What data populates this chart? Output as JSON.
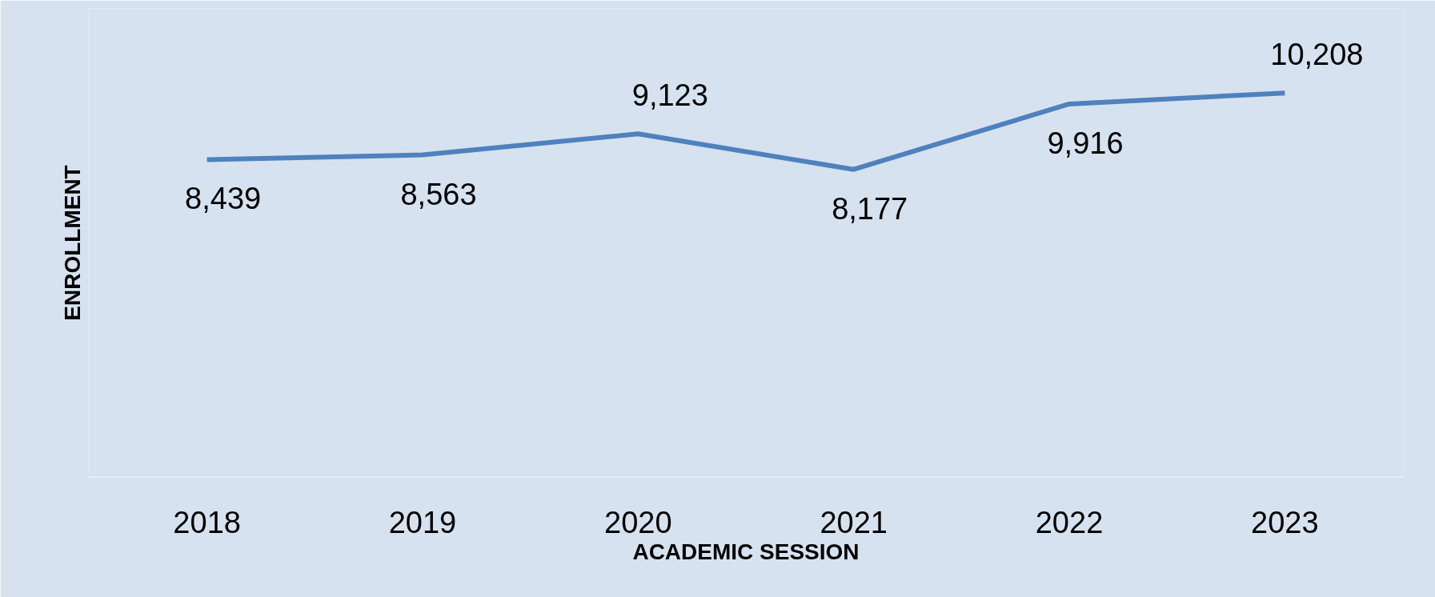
{
  "chart_data": {
    "type": "line",
    "xlabel": "ACADEMIC SESSION",
    "ylabel": "ENROLLMENT",
    "categories": [
      "2018",
      "2019",
      "2020",
      "2021",
      "2022",
      "2023"
    ],
    "series": [
      {
        "color": "#4f81bd",
        "values": [
          8439,
          8563,
          9123,
          8177,
          9916,
          10208
        ],
        "value_labels": [
          "8,439",
          "8,563",
          "9,123",
          "8,177",
          "9,916",
          "10,208"
        ]
      }
    ],
    "tick_labels": "x",
    "grid": false,
    "marker": "none",
    "line_style": "solid"
  }
}
